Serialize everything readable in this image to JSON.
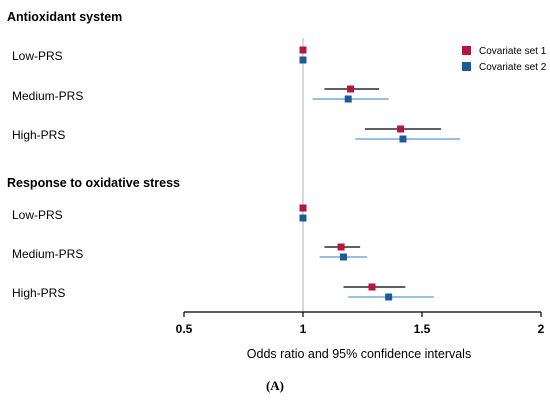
{
  "chart_data": {
    "type": "forest",
    "xlabel": "Odds ratio and 95% confidence intervals",
    "xlim": [
      0.5,
      2
    ],
    "xticks": [
      0.5,
      1,
      1.5,
      2
    ],
    "xtick_labels": [
      "0.5",
      "1",
      "1.5",
      "2"
    ],
    "reference_line": 1,
    "panel_label": "(A)",
    "legend": {
      "placement": "top-right",
      "entries": [
        {
          "name": "Covariate set 1",
          "color": "#b5163f"
        },
        {
          "name": "Covariate set 2",
          "color": "#1c5a9c"
        }
      ]
    },
    "sections": [
      {
        "title": "Antioxidant system",
        "rows": [
          {
            "label": "Low-PRS",
            "set1": {
              "or": 1.0
            },
            "set2": {
              "or": 1.0
            }
          },
          {
            "label": "Medium-PRS",
            "set1": {
              "or": 1.2,
              "lo": 1.09,
              "hi": 1.32
            },
            "set2": {
              "or": 1.19,
              "lo": 1.04,
              "hi": 1.36
            }
          },
          {
            "label": "High-PRS",
            "set1": {
              "or": 1.41,
              "lo": 1.26,
              "hi": 1.58
            },
            "set2": {
              "or": 1.42,
              "lo": 1.22,
              "hi": 1.66
            }
          }
        ]
      },
      {
        "title": "Response to oxidative stress",
        "rows": [
          {
            "label": "Low-PRS",
            "set1": {
              "or": 1.0
            },
            "set2": {
              "or": 1.0
            }
          },
          {
            "label": "Medium-PRS",
            "set1": {
              "or": 1.16,
              "lo": 1.09,
              "hi": 1.24
            },
            "set2": {
              "or": 1.17,
              "lo": 1.07,
              "hi": 1.27
            }
          },
          {
            "label": "High-PRS",
            "set1": {
              "or": 1.29,
              "lo": 1.17,
              "hi": 1.43
            },
            "set2": {
              "or": 1.36,
              "lo": 1.19,
              "hi": 1.55
            }
          }
        ]
      }
    ],
    "colors": {
      "set1_marker": "#b5163f",
      "set2_marker": "#1c5a9c",
      "set1_ci": "#000000",
      "set2_ci": "#5b9bd5",
      "reference_line": "#bfbfbf"
    }
  }
}
